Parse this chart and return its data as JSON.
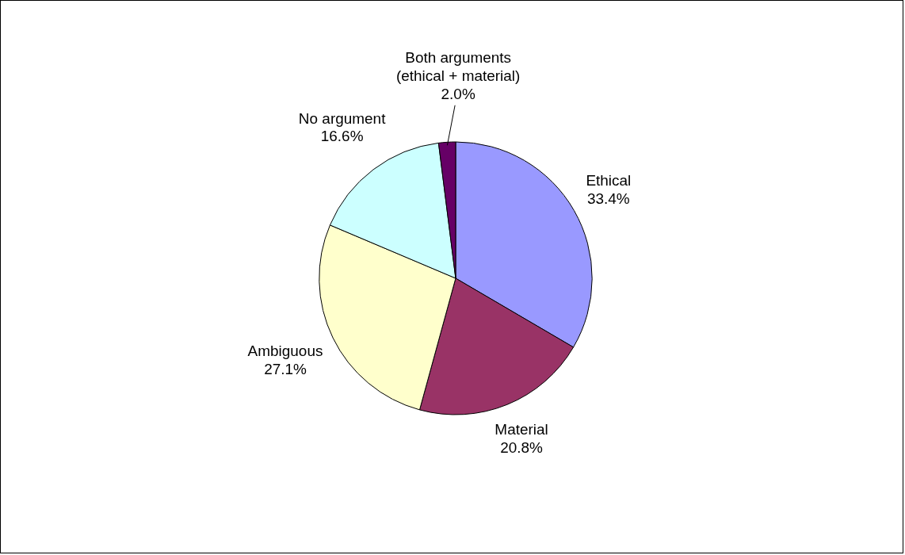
{
  "chart_data": {
    "type": "pie",
    "categories": [
      "Ethical",
      "Material",
      "Ambiguous",
      "No argument",
      "Both arguments\n(ethical + material)"
    ],
    "values": [
      33.4,
      20.8,
      27.1,
      16.6,
      2.0
    ],
    "value_labels": [
      "33.4%",
      "20.8%",
      "27.1%",
      "16.6%",
      "2.0%"
    ],
    "colors": [
      "#9999ff",
      "#993366",
      "#ffffcc",
      "#ccffff",
      "#660066"
    ],
    "legend": false
  }
}
